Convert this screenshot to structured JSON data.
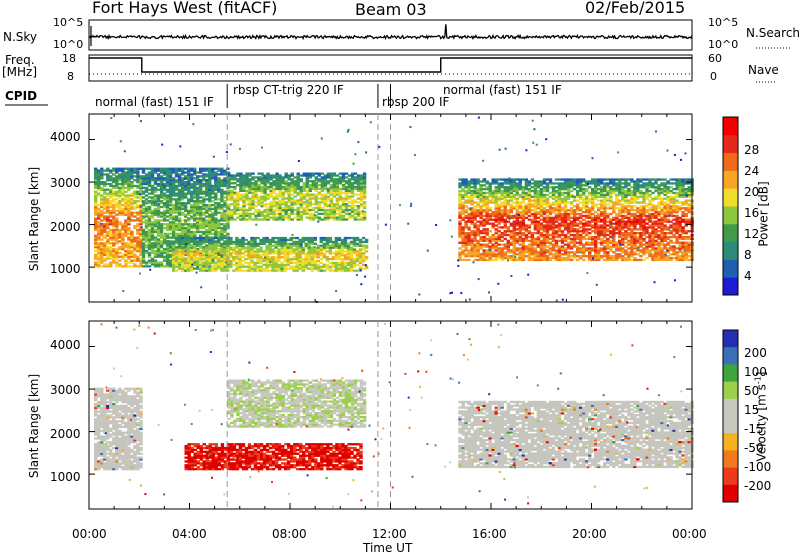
{
  "header": {
    "station": "Fort Hays West (fitACF)",
    "beam": "Beam 03",
    "date": "02/Feb/2015"
  },
  "left_labels": {
    "nsky": "N.Sky",
    "freq": "Freq.",
    "freq_unit": "[MHz]",
    "cpid": "CPID"
  },
  "right_labels": {
    "nsearch": "N.Search",
    "nave": "Nave"
  },
  "scale_labels": {
    "sky_top": "10^5",
    "sky_bottom": "10^0",
    "freq_top": "18",
    "freq_bottom": "8",
    "nave_top": "60",
    "nave_bottom": "0"
  },
  "cpid_modes": [
    {
      "label": "normal (fast) 151 IF",
      "start": 0.0,
      "end": 5.5
    },
    {
      "label": "rbsp CT-trig 220 IF",
      "start": 5.5,
      "end": 11.5
    },
    {
      "label": "rbsp 200 IF",
      "start": 11.5,
      "end": 12.0
    },
    {
      "label": "normal (fast) 151 IF",
      "start": 12.0,
      "end": 24.0
    }
  ],
  "colors": {
    "power": [
      "#1c1cd6",
      "#1f5fb0",
      "#2e8a7a",
      "#3f9a4a",
      "#8dc73f",
      "#f2dc2a",
      "#f6a623",
      "#f06a1c",
      "#e4281c",
      "#f20000"
    ],
    "velocity": [
      "#2030b0",
      "#3b6fb6",
      "#3ca63c",
      "#9ad04a",
      "#c8c8c0",
      "#c8c8c0",
      "#f4b21e",
      "#f07a1c",
      "#ec3a1a",
      "#e00000"
    ],
    "ground_scatter": "#c6c6bf"
  },
  "chart_data": [
    {
      "type": "heatmap",
      "panel": "power",
      "ylabel": "Slant Range [km]",
      "ylim": [
        180,
        4600
      ],
      "xlim": [
        0,
        24
      ],
      "yticks": [
        "1000",
        "2000",
        "3000",
        "4000"
      ],
      "colorbar": {
        "label": "Power [dB]",
        "ticks": [
          "4",
          "8",
          "12",
          "16",
          "20",
          "24",
          "28"
        ],
        "range": [
          0,
          30
        ]
      },
      "regions": [
        {
          "name": "early",
          "t0": 0.2,
          "t1": 2.1,
          "r0": 1000,
          "r1": 3300,
          "core_dB": 26,
          "edge_dB": 6
        },
        {
          "name": "rise",
          "t0": 2.1,
          "t1": 5.5,
          "r0": 1000,
          "r1": 3300,
          "core_dB": 14,
          "edge_dB": 6
        },
        {
          "name": "upper-band",
          "t0": 5.5,
          "t1": 11.0,
          "r0": 2100,
          "r1": 3200,
          "core_dB": 18,
          "edge_dB": 6
        },
        {
          "name": "lower-band",
          "t0": 3.3,
          "t1": 11.0,
          "r0": 900,
          "r1": 1700,
          "core_dB": 20,
          "edge_dB": 6
        },
        {
          "name": "night",
          "t0": 14.7,
          "t1": 24.0,
          "r0": 1150,
          "r1": 3050,
          "core_dB": 30,
          "edge_dB": 6
        }
      ]
    },
    {
      "type": "heatmap",
      "panel": "velocity",
      "ylabel": "Slant Range [km]",
      "xlabel": "Time UT",
      "ylim": [
        180,
        4600
      ],
      "xlim": [
        0,
        24
      ],
      "yticks": [
        "1000",
        "2000",
        "3000",
        "4000"
      ],
      "xticks": [
        "00:00",
        "04:00",
        "08:00",
        "12:00",
        "16:00",
        "20:00",
        "00:00"
      ],
      "colorbar": {
        "label": "Velocity [m s",
        "label_exp": "-1",
        "label_end": "]",
        "ticks": [
          "200",
          "100",
          "50",
          "15",
          "-15",
          "-50",
          "-100",
          "-200"
        ]
      },
      "regions": [
        {
          "name": "ground-scatter-early",
          "t0": 0.2,
          "t1": 2.1,
          "r0": 1100,
          "r1": 3000,
          "velocity": 0
        },
        {
          "name": "ground-scatter-night",
          "t0": 14.7,
          "t1": 24.0,
          "r0": 1150,
          "r1": 2700,
          "velocity": 0
        },
        {
          "name": "receding-band",
          "t0": 3.8,
          "t1": 10.8,
          "r0": 1100,
          "r1": 1700,
          "velocity": -180
        },
        {
          "name": "upper-band-mixed",
          "t0": 5.5,
          "t1": 11.0,
          "r0": 2100,
          "r1": 3200,
          "velocity": 20
        }
      ]
    }
  ]
}
